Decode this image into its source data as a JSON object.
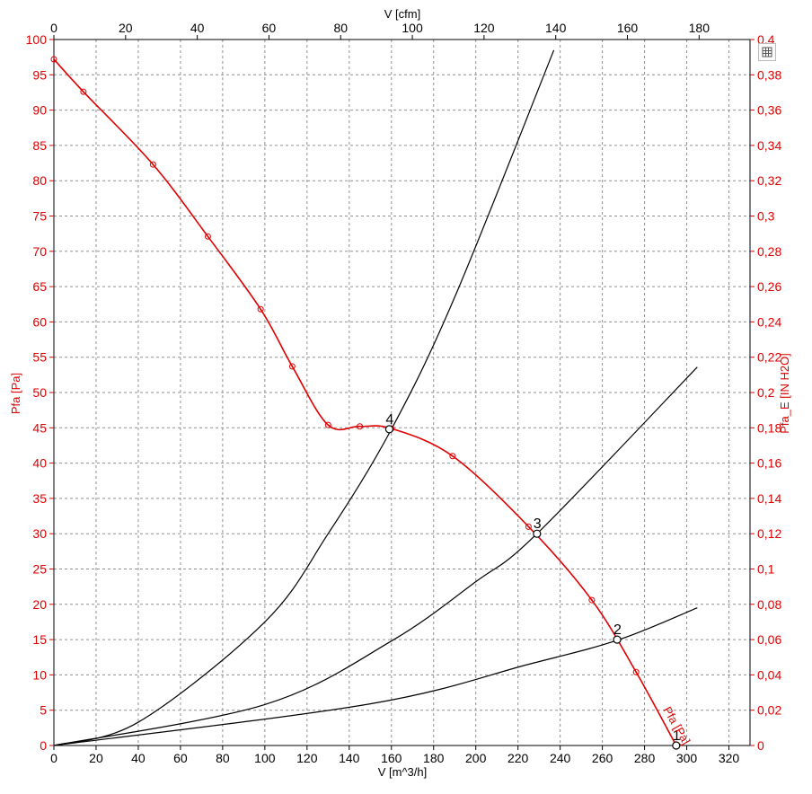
{
  "chart_data": {
    "type": "line",
    "axes": {
      "x_bottom": {
        "label": "V [m^3/h]",
        "range": [
          0,
          330
        ],
        "ticks": [
          0,
          20,
          40,
          60,
          80,
          100,
          120,
          140,
          160,
          180,
          200,
          220,
          240,
          260,
          280,
          300,
          320
        ]
      },
      "x_top": {
        "label": "V [cfm]",
        "range": [
          0,
          194.2
        ],
        "ticks": [
          0,
          20,
          40,
          60,
          80,
          100,
          120,
          140,
          160,
          180
        ]
      },
      "y_left": {
        "label": "Pfa [Pa]",
        "range": [
          0,
          100
        ],
        "ticks": [
          0,
          5,
          10,
          15,
          20,
          25,
          30,
          35,
          40,
          45,
          50,
          55,
          60,
          65,
          70,
          75,
          80,
          85,
          90,
          95,
          100
        ]
      },
      "y_right": {
        "label": "Pfa_E [IN H2O]",
        "range": [
          0,
          0.4
        ],
        "ticks": [
          "0",
          "0,02",
          "0,04",
          "0,06",
          "0,08",
          "0,1",
          "0,12",
          "0,14",
          "0,16",
          "0,18",
          "0,2",
          "0,22",
          "0,24",
          "0,26",
          "0,28",
          "0,3",
          "0,32",
          "0,34",
          "0,36",
          "0,38",
          "0,4"
        ]
      }
    },
    "grid": true,
    "colors": {
      "fan_curve": "#e00000",
      "system_curve": "#000000",
      "grid": "#909090"
    },
    "fan_curve": {
      "name": "Pfa [Pa]",
      "points": [
        [
          0,
          97.2
        ],
        [
          14,
          92.6
        ],
        [
          47,
          82.3
        ],
        [
          73,
          72.1
        ],
        [
          98,
          61.8
        ],
        [
          113,
          53.7
        ],
        [
          130,
          45.4
        ],
        [
          145,
          45.2
        ],
        [
          160,
          44.9
        ],
        [
          189,
          41.0
        ],
        [
          225,
          31.0
        ],
        [
          255,
          20.6
        ],
        [
          276,
          10.4
        ],
        [
          295,
          0
        ]
      ]
    },
    "system_curves": [
      {
        "id": "1",
        "points": [
          [
            0,
            0
          ],
          [
            150,
            5.9
          ],
          [
            225,
            11.5
          ],
          [
            268,
            15.0
          ],
          [
            305,
            19.5
          ]
        ]
      },
      {
        "id": "2",
        "points": [
          [
            0,
            0
          ],
          [
            100,
            5.8
          ],
          [
            160,
            14.8
          ],
          [
            200,
            23.2
          ],
          [
            229,
            30.0
          ],
          [
            305,
            53.6
          ]
        ]
      },
      {
        "id": "3",
        "points": [
          [
            0,
            0
          ],
          [
            40,
            3.3
          ],
          [
            100,
            17.5
          ],
          [
            130,
            30.0
          ],
          [
            160,
            44.8
          ],
          [
            190,
            63.5
          ],
          [
            237,
            98.5
          ]
        ]
      }
    ],
    "operating_points": [
      {
        "label": "1",
        "x": 295,
        "y": 0
      },
      {
        "label": "2",
        "x": 267,
        "y": 15
      },
      {
        "label": "3",
        "x": 229,
        "y": 30
      },
      {
        "label": "4",
        "x": 159,
        "y": 44.8
      }
    ],
    "curve_label": "Pfa [Pa]"
  },
  "toolbar": {
    "icon": "table-icon"
  }
}
